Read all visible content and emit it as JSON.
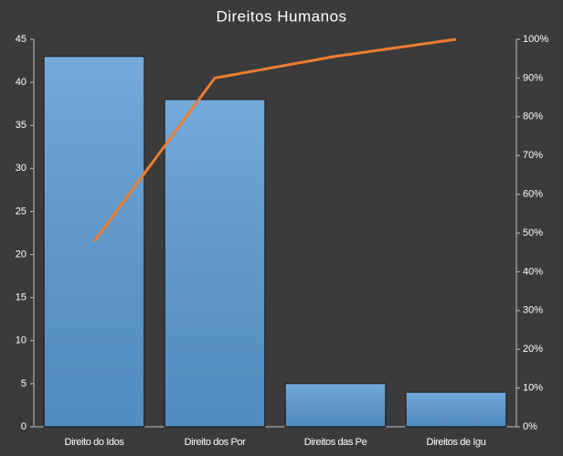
{
  "chart_data": {
    "type": "pareto",
    "title": "Direitos Humanos",
    "categories": [
      "Direito do Idos",
      "Direito dos Por",
      "Direitos das Pe",
      "Direitos de Igu"
    ],
    "series": [
      {
        "type": "bar",
        "color": "#5b9bd5",
        "values": [
          43,
          38,
          5,
          4
        ]
      },
      {
        "type": "line",
        "color": "#ed7d31",
        "axis": "y2",
        "values": [
          47.8,
          90,
          95.6,
          100
        ]
      }
    ],
    "ylim": [
      0,
      45
    ],
    "yticks": [
      0,
      5,
      10,
      15,
      20,
      25,
      30,
      35,
      40,
      45
    ],
    "y2lim": [
      0,
      100
    ],
    "y2ticks": [
      {
        "value": 0,
        "label": "0%"
      },
      {
        "value": 10,
        "label": "10%"
      },
      {
        "value": 20,
        "label": "20%"
      },
      {
        "value": 30,
        "label": "30%"
      },
      {
        "value": 40,
        "label": "40%"
      },
      {
        "value": 50,
        "label": "50%"
      },
      {
        "value": 60,
        "label": "60%"
      },
      {
        "value": 70,
        "label": "70%"
      },
      {
        "value": 80,
        "label": "80%"
      },
      {
        "value": 90,
        "label": "90%"
      },
      {
        "value": 100,
        "label": "100%"
      }
    ],
    "grid": false
  }
}
